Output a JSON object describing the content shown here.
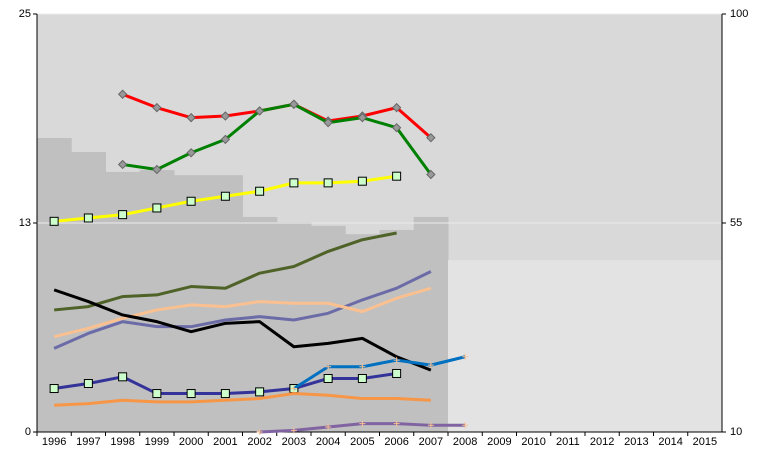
{
  "chart_data": {
    "type": "line",
    "categories": [
      "1996",
      "1997",
      "1998",
      "1999",
      "2000",
      "2001",
      "2002",
      "2003",
      "2004",
      "2005",
      "2006",
      "2007",
      "2008",
      "2009",
      "2010",
      "2011",
      "2012",
      "2013",
      "2014",
      "2015"
    ],
    "ylim": [
      0,
      25
    ],
    "yticks": [
      0,
      {
        "value": 12.5,
        "label": "13"
      },
      25
    ],
    "y2lim": [
      10,
      100
    ],
    "y2ticks": [
      10,
      55,
      100
    ],
    "grid": true,
    "background": "#d9d9d9",
    "series": [
      {
        "type": "area",
        "axis": "y2",
        "color": "#c0c0c0",
        "values": [
          73.3,
          70.3,
          66,
          66.4,
          65.3,
          65.3,
          56.3,
          55.2,
          54.4,
          52.6,
          53.5,
          56.3,
          null,
          null,
          null,
          null,
          null,
          null,
          null,
          null
        ]
      },
      {
        "type": "area",
        "axis": "y2",
        "color": "#e3e3e3",
        "values": [
          null,
          null,
          null,
          null,
          null,
          null,
          null,
          null,
          null,
          null,
          null,
          null,
          47,
          47,
          47,
          47,
          47,
          47,
          47,
          47
        ]
      },
      {
        "color": "#ff0000",
        "marker": "diamond",
        "values": [
          null,
          null,
          20.2,
          19.4,
          18.8,
          18.9,
          19.2,
          19.6,
          18.6,
          18.9,
          19.4,
          17.6,
          null,
          null,
          null,
          null,
          null,
          null,
          null,
          null
        ]
      },
      {
        "color": "#008000",
        "marker": "diamond",
        "values": [
          null,
          null,
          16.0,
          15.7,
          16.7,
          17.5,
          19.2,
          19.6,
          18.5,
          18.8,
          18.2,
          15.4,
          null,
          null,
          null,
          null,
          null,
          null,
          null,
          null
        ]
      },
      {
        "color": "#ffff00",
        "marker": "square",
        "values": [
          12.6,
          12.8,
          13.0,
          13.4,
          13.8,
          14.1,
          14.4,
          14.9,
          14.9,
          15.0,
          15.3,
          null,
          null,
          null,
          null,
          null,
          null,
          null,
          null,
          null
        ]
      },
      {
        "color": "#4f6228",
        "values": [
          7.3,
          7.5,
          8.1,
          8.2,
          8.7,
          8.6,
          9.5,
          9.9,
          10.8,
          11.5,
          11.9,
          null,
          null,
          null,
          null,
          null,
          null,
          null,
          null,
          null
        ]
      },
      {
        "color": "#6b6ba8",
        "values": [
          5.0,
          5.9,
          6.6,
          6.3,
          6.3,
          6.7,
          6.9,
          6.7,
          7.1,
          7.9,
          8.6,
          9.6,
          null,
          null,
          null,
          null,
          null,
          null,
          null,
          null
        ]
      },
      {
        "color": "#fac090",
        "values": [
          5.7,
          6.2,
          6.8,
          7.3,
          7.6,
          7.5,
          7.8,
          7.7,
          7.7,
          7.2,
          8.0,
          8.6,
          null,
          null,
          null,
          null,
          null,
          null,
          null,
          null
        ]
      },
      {
        "color": "#000000",
        "values": [
          8.5,
          7.8,
          7.0,
          6.6,
          6.0,
          6.5,
          6.6,
          5.1,
          5.3,
          5.6,
          4.5,
          3.7,
          null,
          null,
          null,
          null,
          null,
          null,
          null,
          null
        ]
      },
      {
        "color": "#333399",
        "marker": "square",
        "values": [
          2.6,
          2.9,
          3.3,
          2.3,
          2.3,
          2.3,
          2.4,
          2.6,
          3.2,
          3.2,
          3.5,
          null,
          null,
          null,
          null,
          null,
          null,
          null,
          null,
          null
        ]
      },
      {
        "color": "#0070c0",
        "marker": "plus",
        "values": [
          null,
          null,
          null,
          null,
          null,
          null,
          null,
          2.6,
          3.9,
          3.9,
          4.3,
          4.0,
          4.5,
          null,
          null,
          null,
          null,
          null,
          null,
          null
        ]
      },
      {
        "color": "#f79646",
        "values": [
          1.6,
          1.7,
          1.9,
          1.8,
          1.8,
          1.9,
          2.0,
          2.3,
          2.2,
          2.0,
          2.0,
          1.9,
          null,
          null,
          null,
          null,
          null,
          null,
          null,
          null
        ]
      },
      {
        "color": "#8064a2",
        "marker": "plus",
        "values": [
          null,
          null,
          null,
          null,
          null,
          null,
          0.0,
          0.1,
          0.3,
          0.5,
          0.5,
          0.4,
          0.4,
          null,
          null,
          null,
          null,
          null,
          null,
          null
        ]
      }
    ]
  }
}
